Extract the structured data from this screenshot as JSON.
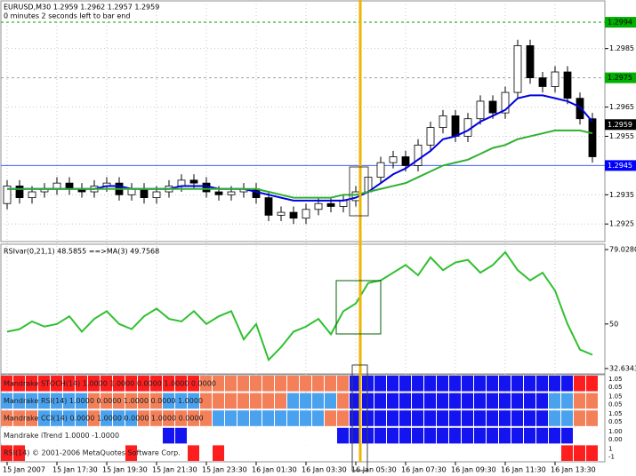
{
  "chart_data": [
    {
      "type": "candlestick",
      "info": "EURUSD,M30  1.2959 1.2962 1.2957 1.2959",
      "timer": "0 minutes 2 seconds left to bar end",
      "categories": [
        "15 Jan 2007",
        null,
        null,
        null,
        "15 Jan 17:30",
        null,
        null,
        null,
        "15 Jan 19:30",
        null,
        null,
        null,
        "15 Jan 21:30",
        null,
        null,
        null,
        "15 Jan 23:30",
        null,
        null,
        null,
        "16 Jan 01:30",
        null,
        null,
        null,
        "16 Jan 03:30",
        null,
        null,
        null,
        "16 Jan 05:30",
        null,
        null,
        null,
        "16 Jan 07:30",
        null,
        null,
        null,
        "16 Jan 09:30",
        null,
        null,
        null,
        "16 Jan 11:30",
        null,
        null,
        null,
        "16 Jan 13:30",
        null,
        null,
        null
      ],
      "open": [
        1.2932,
        1.2938,
        1.2934,
        1.2936,
        1.2937,
        1.2939,
        1.2937,
        1.2936,
        1.2938,
        1.2939,
        1.2935,
        1.2937,
        1.2934,
        1.2936,
        1.2938,
        1.294,
        1.2939,
        1.2936,
        1.2935,
        1.2936,
        1.2937,
        1.2934,
        1.2928,
        1.2929,
        1.2927,
        1.293,
        1.2932,
        1.2931,
        1.2933,
        1.2936,
        1.2941,
        1.2946,
        1.2948,
        1.2945,
        1.2952,
        1.2958,
        1.2962,
        1.2955,
        1.2961,
        1.2967,
        1.2963,
        1.297,
        1.2986,
        1.2975,
        1.2972,
        1.2977,
        1.2968,
        1.2961
      ],
      "high": [
        1.294,
        1.294,
        1.2938,
        1.2939,
        1.2941,
        1.2941,
        1.2939,
        1.294,
        1.2941,
        1.2941,
        1.2939,
        1.2939,
        1.2938,
        1.294,
        1.2942,
        1.2942,
        1.2941,
        1.2938,
        1.2938,
        1.2939,
        1.2939,
        1.2936,
        1.2931,
        1.2931,
        1.2932,
        1.2934,
        1.2934,
        1.2935,
        1.2938,
        1.2943,
        1.2948,
        1.295,
        1.295,
        1.2954,
        1.296,
        1.2964,
        1.2964,
        1.2963,
        1.2969,
        1.2969,
        1.2972,
        1.2988,
        1.2988,
        1.2977,
        1.2979,
        1.2979,
        1.297,
        1.2963
      ],
      "low": [
        1.293,
        1.2932,
        1.2932,
        1.2934,
        1.2935,
        1.2935,
        1.2934,
        1.2934,
        1.2936,
        1.2933,
        1.2933,
        1.2932,
        1.2932,
        1.2934,
        1.2936,
        1.2937,
        1.2934,
        1.2933,
        1.2933,
        1.2934,
        1.2932,
        1.2926,
        1.2926,
        1.2925,
        1.2925,
        1.2928,
        1.2929,
        1.2929,
        1.2931,
        1.2934,
        1.2939,
        1.2944,
        1.2943,
        1.2943,
        1.295,
        1.2956,
        1.2953,
        1.2953,
        1.2959,
        1.2961,
        1.2961,
        1.2968,
        1.2973,
        1.297,
        1.297,
        1.2966,
        1.2959,
        1.2946
      ],
      "close": [
        1.2938,
        1.2934,
        1.2936,
        1.2937,
        1.2939,
        1.2937,
        1.2936,
        1.2938,
        1.2939,
        1.2935,
        1.2937,
        1.2934,
        1.2936,
        1.2938,
        1.294,
        1.2939,
        1.2936,
        1.2935,
        1.2936,
        1.2937,
        1.2934,
        1.2928,
        1.2929,
        1.2927,
        1.293,
        1.2932,
        1.2931,
        1.2933,
        1.2936,
        1.2941,
        1.2946,
        1.2948,
        1.2945,
        1.2952,
        1.2958,
        1.2962,
        1.2955,
        1.2961,
        1.2967,
        1.2963,
        1.297,
        1.2986,
        1.2975,
        1.2972,
        1.2977,
        1.2968,
        1.2961,
        1.2948
      ],
      "lines": [
        {
          "color": "#0000e0",
          "width": 2,
          "values": [
            1.2937,
            1.2937,
            1.2937,
            1.2937,
            1.2937,
            1.2937,
            1.2937,
            1.2937,
            1.2938,
            1.2938,
            1.2937,
            1.2937,
            1.2937,
            1.2937,
            1.2938,
            1.2938,
            1.2938,
            1.2937,
            1.2937,
            1.2937,
            1.2936,
            1.2935,
            1.2934,
            1.2933,
            1.2933,
            1.2933,
            1.2933,
            1.2933,
            1.2934,
            1.2936,
            1.2939,
            1.2942,
            1.2944,
            1.2947,
            1.295,
            1.2954,
            1.2955,
            1.2957,
            1.296,
            1.2962,
            1.2964,
            1.2968,
            1.2969,
            1.2969,
            1.2968,
            1.2967,
            1.2965,
            1.296
          ]
        },
        {
          "color": "#30b030",
          "width": 2,
          "values": [
            1.2937,
            1.2937,
            1.2937,
            1.2937,
            1.2937,
            1.2937,
            1.2937,
            1.2937,
            1.2937,
            1.2937,
            1.2937,
            1.2937,
            1.2937,
            1.2937,
            1.2937,
            1.2937,
            1.2937,
            1.2937,
            1.2937,
            1.2937,
            1.2937,
            1.2936,
            1.2935,
            1.2934,
            1.2934,
            1.2934,
            1.2934,
            1.2935,
            1.2935,
            1.2936,
            1.2937,
            1.2938,
            1.2939,
            1.2941,
            1.2943,
            1.2945,
            1.2946,
            1.2947,
            1.2949,
            1.2951,
            1.2952,
            1.2954,
            1.2955,
            1.2956,
            1.2957,
            1.2957,
            1.2957,
            1.2956
          ]
        }
      ],
      "ylim": [
        1.2919,
        1.3001
      ],
      "yticks": [
        1.2925,
        1.2935,
        1.2955,
        1.2965,
        1.2985
      ],
      "levels": [
        {
          "value": 1.2994,
          "color": "#00b000",
          "text_color": "#000000",
          "line": "#00a000"
        },
        {
          "value": 1.2975,
          "color": "#00b000",
          "text_color": "#000000",
          "line": "#a0a0a0"
        },
        {
          "value": 1.2959,
          "color": "#000000",
          "text_color": "#ffffff",
          "line": null
        },
        {
          "value": 1.2945,
          "color": "#0000ff",
          "text_color": "#ffffff",
          "line": "#4060ff"
        }
      ]
    },
    {
      "type": "line",
      "title": "RSIvar(0,21,1) 48.5855  ==>MA(3) 49.7568",
      "color": "#30c030",
      "values": [
        47,
        48,
        51,
        49,
        50,
        53,
        47,
        52,
        55,
        50,
        48,
        53,
        56,
        52,
        51,
        55,
        50,
        53,
        55,
        44,
        50,
        36,
        41,
        47,
        49,
        52,
        46,
        55,
        58,
        66,
        67,
        70,
        73,
        69,
        76,
        71,
        74,
        75,
        70,
        73,
        78,
        71,
        67,
        70,
        63,
        50,
        40,
        38
      ],
      "ylim": [
        30.56,
        80.76
      ],
      "yticks": [
        {
          "value": 79.028,
          "label": "79.0280"
        },
        50,
        32.6343
      ]
    },
    {
      "type": "heatmap",
      "palette": [
        "#f4805a",
        "#ff1e1e",
        "#ffffff",
        "#1414f0",
        "#4aa2ee"
      ],
      "rows": [
        {
          "label": "Mandrake STOCH(14) 1.0000 1.0000 0.0000 1.0000 0.0000",
          "right_labels": [
            "1.05",
            "0.05"
          ],
          "values": [
            -1,
            -1,
            -1,
            -1,
            -1,
            -1,
            -1,
            -1,
            -1,
            -1,
            -1,
            -1,
            -1,
            -1,
            -1,
            -1,
            -2,
            -2,
            -2,
            -2,
            -2,
            -2,
            -2,
            -2,
            -2,
            -2,
            -2,
            -2,
            1,
            1,
            1,
            1,
            1,
            1,
            1,
            1,
            1,
            1,
            1,
            1,
            1,
            1,
            1,
            1,
            1,
            1,
            -1,
            -1
          ]
        },
        {
          "label": "Mandrake RSI(14) 1.0000 0.0000 1.0000 0.0000 1.0000",
          "right_labels": [
            "1.05",
            "0.05"
          ],
          "values": [
            2,
            2,
            2,
            2,
            2,
            2,
            2,
            -2,
            -2,
            -2,
            -2,
            -2,
            -2,
            2,
            2,
            2,
            -2,
            -2,
            -2,
            -2,
            -2,
            -2,
            -2,
            2,
            2,
            2,
            2,
            -2,
            1,
            1,
            1,
            1,
            1,
            1,
            1,
            1,
            1,
            1,
            1,
            1,
            1,
            1,
            1,
            1,
            2,
            2,
            -2,
            -2
          ]
        },
        {
          "label": "Mandrake CCI(14) 0.0000 1.0000 0.0000 1.0000 0.0000",
          "right_labels": [
            "1.05",
            "0.05"
          ],
          "values": [
            -2,
            -2,
            -2,
            2,
            2,
            2,
            2,
            -2,
            2,
            2,
            2,
            -2,
            -2,
            -2,
            -2,
            -2,
            -2,
            2,
            2,
            2,
            2,
            2,
            2,
            2,
            2,
            2,
            -2,
            -2,
            1,
            1,
            1,
            1,
            1,
            1,
            1,
            1,
            1,
            1,
            1,
            1,
            1,
            1,
            1,
            1,
            2,
            2,
            -2,
            -2
          ]
        },
        {
          "label": "Mandrake iTrend 1.0000 -1.0000",
          "right_labels": [
            "1.00",
            "0.00"
          ],
          "values": [
            0,
            0,
            0,
            0,
            0,
            0,
            0,
            0,
            0,
            0,
            0,
            0,
            0,
            1,
            1,
            0,
            0,
            0,
            0,
            0,
            0,
            0,
            0,
            0,
            0,
            0,
            0,
            1,
            1,
            1,
            1,
            1,
            1,
            1,
            1,
            1,
            1,
            1,
            1,
            1,
            1,
            1,
            1,
            1,
            1,
            1,
            0,
            0
          ]
        },
        {
          "label": "RSI(14) © 2001-2006 MetaQuotes Software Corp.",
          "right_labels": [
            "1",
            "-1"
          ],
          "values": [
            -1,
            -1,
            0,
            0,
            0,
            0,
            0,
            0,
            0,
            0,
            -1,
            0,
            0,
            0,
            0,
            -1,
            0,
            -1,
            0,
            0,
            0,
            0,
            0,
            0,
            0,
            0,
            0,
            0,
            0,
            0,
            0,
            0,
            0,
            0,
            0,
            0,
            0,
            0,
            0,
            0,
            0,
            0,
            0,
            0,
            0,
            -1,
            -1,
            -1
          ]
        }
      ]
    }
  ]
}
